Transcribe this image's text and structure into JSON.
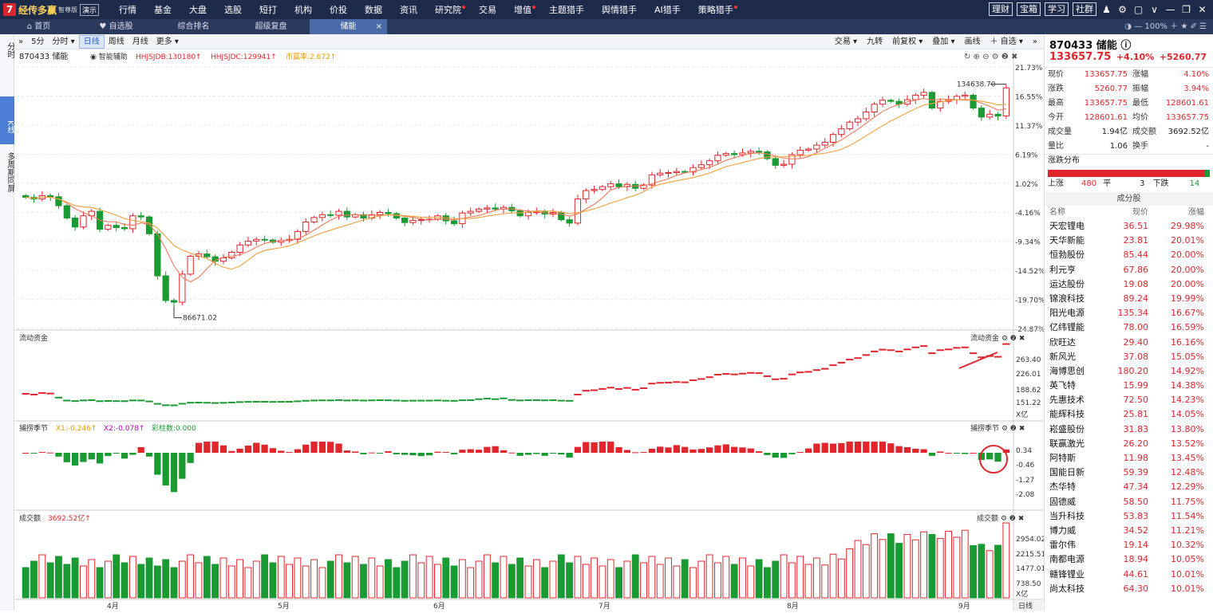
{
  "app": {
    "logo_mark": "7",
    "name": "经传多赢",
    "edition": "智尊版",
    "demo": "演示"
  },
  "menu": [
    {
      "label": "行情",
      "dot": false
    },
    {
      "label": "基金",
      "dot": false
    },
    {
      "label": "大盘",
      "dot": false
    },
    {
      "label": "选股",
      "dot": false
    },
    {
      "label": "短打",
      "dot": false
    },
    {
      "label": "机构",
      "dot": false
    },
    {
      "label": "价投",
      "dot": false
    },
    {
      "label": "数据",
      "dot": false
    },
    {
      "label": "资讯",
      "dot": false
    },
    {
      "label": "研究院",
      "dot": true
    },
    {
      "label": "交易",
      "dot": false
    },
    {
      "label": "增值",
      "dot": true
    },
    {
      "label": "主题猎手",
      "dot": false
    },
    {
      "label": "舆情猎手",
      "dot": false
    },
    {
      "label": "AI猎手",
      "dot": false
    },
    {
      "label": "策略猎手",
      "dot": true
    }
  ],
  "topright": {
    "buttons": [
      "理财",
      "宝箱",
      "学习",
      "社群"
    ],
    "icons": [
      "user-icon",
      "gear-icon",
      "window-icon",
      "chevron-down-icon",
      "minimize-icon",
      "restore-icon",
      "close-icon"
    ],
    "glyphs": [
      "♟",
      "⚙",
      "▢",
      "∨",
      "—",
      "❐",
      "✕"
    ]
  },
  "tabs": [
    {
      "label": "首页",
      "icon": "home-icon",
      "glyph": "⌂"
    },
    {
      "label": "自选股",
      "icon": "heart-icon",
      "glyph": "♥"
    },
    {
      "label": "综合排名",
      "icon": "",
      "glyph": ""
    },
    {
      "label": "超级复盘",
      "icon": "",
      "glyph": ""
    },
    {
      "label": "储能",
      "icon": "",
      "glyph": "",
      "active": true,
      "close": "×"
    }
  ],
  "tabright": "◑ — 100% ＋ ★ ✐ ☰",
  "leftside": {
    "fenshi": "分时",
    "kxian": "K线",
    "multi": "多周期同屏"
  },
  "toolbar": {
    "collapse": "»",
    "periods": [
      {
        "label": "5分"
      },
      {
        "label": "分时 ▾"
      },
      {
        "label": "日线",
        "on": true
      },
      {
        "label": "周线"
      },
      {
        "label": "月线"
      },
      {
        "label": "更多 ▾"
      }
    ],
    "right": [
      "交易 ▾",
      "九转",
      "前复权 ▾",
      "叠加 ▾",
      "画线",
      "＋ 自选 ▾",
      "»"
    ]
  },
  "kpanel": {
    "symbol": "870433 储能",
    "assist": "智能辅助",
    "ind1": "HHJSJDB:130180",
    "ind2": "HHJSJDC:129941",
    "ind3": "市赢率:2.672",
    "icons": "↻ ⊕ ⊖ ⚙ ❷ ✖",
    "yaxis": [
      "21.73%",
      "16.55%",
      "11.37%",
      "6.19%",
      "1.02%",
      "-4.16%",
      "-9.34%",
      "-14.52%",
      "-19.70%",
      "-24.87%"
    ],
    "high_label": "134638.70",
    "low_label": "86671.02"
  },
  "flow": {
    "title": "流动资金",
    "title_r": "流动资金",
    "yaxis": [
      "263.40",
      "226.01",
      "188.62",
      "151.22"
    ],
    "unit": "X亿"
  },
  "season": {
    "title": "捕捞季节",
    "x1": "X1:-0.246",
    "x2": "X2:-0.078",
    "bar": "彩柱数:0.000",
    "title_r": "捕捞季节",
    "yaxis": [
      "0.34",
      "-0.46",
      "-1.27",
      "-2.08"
    ]
  },
  "volume": {
    "title": "成交额",
    "value": "3692.52亿",
    "title_r": "成交额",
    "yaxis": [
      "2954.02",
      "2215.51",
      "1477.01",
      "738.50"
    ],
    "unit": "X亿"
  },
  "months": [
    "4月",
    "5月",
    "6月",
    "7月",
    "8月",
    "9月"
  ],
  "period_btn": "日线",
  "colors": {
    "up": "#e0252d",
    "down": "#1a9a32",
    "ma1": "#f07a5a",
    "ma2": "#f0a03c"
  },
  "chart_data": {
    "type": "candlestick",
    "closes": [
      -1.5,
      -1.8,
      -1.2,
      -1.4,
      -3.0,
      -5.2,
      -6.8,
      -4.8,
      -4.0,
      -7.2,
      -6.5,
      -6.9,
      -7.1,
      -4.8,
      -5.0,
      -8.0,
      -15.5,
      -19.9,
      -20.2,
      -15.2,
      -12.0,
      -11.6,
      -12.1,
      -12.9,
      -12.3,
      -11.3,
      -10.0,
      -9.3,
      -9.0,
      -9.1,
      -9.5,
      -9.2,
      -9.0,
      -7.6,
      -5.9,
      -5.1,
      -4.6,
      -4.7,
      -4.0,
      -5.0,
      -4.6,
      -5.2,
      -4.6,
      -4.2,
      -4.4,
      -5.2,
      -6.0,
      -5.6,
      -5.5,
      -5.4,
      -4.8,
      -5.7,
      -6.2,
      -4.3,
      -4.0,
      -3.6,
      -3.4,
      -3.6,
      -3.3,
      -3.9,
      -4.8,
      -4.2,
      -4.1,
      -4.5,
      -4.2,
      -5.5,
      -6.1,
      -1.8,
      -0.3,
      -0.1,
      0.4,
      0.9,
      0.4,
      0.8,
      0.1,
      0.7,
      2.5,
      2.8,
      2.9,
      3.1,
      3.0,
      3.8,
      4.3,
      5.0,
      6.0,
      6.3,
      6.1,
      6.4,
      6.7,
      6.6,
      5.4,
      4.2,
      4.4,
      6.1,
      6.9,
      7.1,
      7.8,
      8.3,
      9.7,
      10.7,
      11.9,
      12.5,
      13.7,
      15.1,
      15.8,
      15.6,
      15.1,
      15.9,
      16.7,
      17.2,
      14.4,
      15.6,
      15.9,
      16.5,
      16.7,
      14.4,
      12.8,
      13.3,
      13.0,
      18.0
    ],
    "period_start": "-1.5%"
  }
}
